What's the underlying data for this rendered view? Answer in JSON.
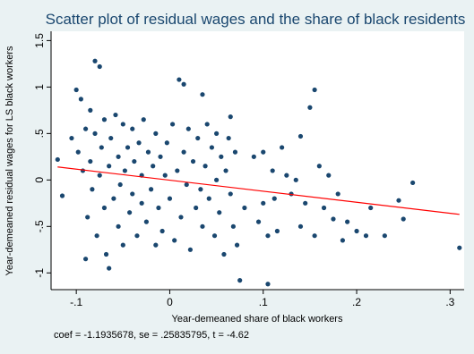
{
  "chart_data": {
    "type": "scatter",
    "title": "Scatter plot of residual wages and the share of black residents",
    "xlabel": "Year-demeaned share of black workers",
    "ylabel": "Year-demeaned residual wages for LS black workers",
    "note": "coef = -1.1935678, se = .25835795, t = -4.62",
    "color": "#1a476f",
    "xlim": [
      -0.127,
      0.315
    ],
    "ylim": [
      -1.18,
      1.6
    ],
    "xticks": [
      {
        "value": -0.1,
        "label": "-.1"
      },
      0,
      {
        "value": 0.1,
        "label": ".1"
      },
      {
        "value": 0.2,
        "label": ".2"
      },
      {
        "value": 0.3,
        "label": ".3"
      }
    ],
    "yticks": [
      -1,
      {
        "value": -0.5,
        "label": "-.5"
      },
      0,
      {
        "value": 0.5,
        "label": ".5"
      },
      1,
      {
        "value": 1.5,
        "label": "1.5"
      }
    ],
    "x": [
      -0.12,
      -0.115,
      -0.105,
      -0.1,
      -0.098,
      -0.095,
      -0.093,
      -0.09,
      -0.09,
      -0.088,
      -0.085,
      -0.085,
      -0.083,
      -0.08,
      -0.08,
      -0.078,
      -0.075,
      -0.075,
      -0.073,
      -0.07,
      -0.07,
      -0.068,
      -0.065,
      -0.065,
      -0.063,
      -0.06,
      -0.058,
      -0.055,
      -0.055,
      -0.053,
      -0.05,
      -0.05,
      -0.048,
      -0.045,
      -0.043,
      -0.04,
      -0.04,
      -0.038,
      -0.035,
      -0.033,
      -0.03,
      -0.03,
      -0.028,
      -0.025,
      -0.023,
      -0.02,
      -0.018,
      -0.015,
      -0.015,
      -0.012,
      -0.01,
      -0.008,
      -0.005,
      -0.003,
      0.0,
      0.003,
      0.005,
      0.008,
      0.01,
      0.012,
      0.015,
      0.015,
      0.018,
      0.02,
      0.022,
      0.025,
      0.028,
      0.03,
      0.033,
      0.035,
      0.035,
      0.038,
      0.04,
      0.042,
      0.045,
      0.048,
      0.05,
      0.05,
      0.053,
      0.055,
      0.058,
      0.06,
      0.063,
      0.065,
      0.065,
      0.068,
      0.07,
      0.072,
      0.075,
      0.08,
      0.09,
      0.095,
      0.1,
      0.1,
      0.105,
      0.105,
      0.11,
      0.112,
      0.115,
      0.12,
      0.125,
      0.13,
      0.135,
      0.14,
      0.14,
      0.145,
      0.15,
      0.155,
      0.155,
      0.16,
      0.165,
      0.17,
      0.175,
      0.18,
      0.185,
      0.19,
      0.2,
      0.21,
      0.215,
      0.23,
      0.245,
      0.25,
      0.26,
      0.31
    ],
    "values": [
      0.22,
      -0.17,
      0.45,
      0.97,
      0.3,
      0.87,
      0.1,
      -0.85,
      0.55,
      -0.4,
      0.75,
      0.2,
      -0.1,
      1.28,
      0.5,
      -0.6,
      1.22,
      0.05,
      0.35,
      -0.3,
      0.65,
      -0.8,
      -0.95,
      0.15,
      0.45,
      -0.2,
      0.7,
      -0.5,
      0.25,
      -0.05,
      0.6,
      -0.7,
      0.1,
      0.35,
      -0.35,
      0.55,
      -0.15,
      0.2,
      -0.6,
      0.4,
      0.05,
      -0.25,
      0.65,
      -0.45,
      0.3,
      -0.1,
      0.15,
      -0.7,
      0.5,
      -0.3,
      0.25,
      -0.55,
      0.05,
      0.4,
      -0.2,
      0.6,
      -0.65,
      0.1,
      1.08,
      -0.4,
      1.03,
      0.3,
      -0.05,
      0.55,
      -0.75,
      0.2,
      -0.3,
      0.45,
      -0.1,
      0.92,
      -0.5,
      0.15,
      0.6,
      -0.2,
      0.35,
      -0.6,
      0.0,
      0.5,
      -0.35,
      0.25,
      -0.8,
      0.1,
      0.45,
      0.68,
      -0.15,
      -0.5,
      0.3,
      -0.7,
      -1.08,
      -0.3,
      0.25,
      -0.45,
      -0.25,
      0.3,
      -1.12,
      -0.6,
      0.1,
      -0.2,
      -0.55,
      0.35,
      0.05,
      -0.15,
      0.0,
      0.47,
      -0.5,
      -0.25,
      0.78,
      0.97,
      -0.6,
      0.15,
      -0.3,
      0.05,
      -0.42,
      -0.15,
      -0.65,
      -0.45,
      -0.55,
      -0.6,
      -0.3,
      -0.6,
      -0.22,
      -0.42,
      -0.03,
      -0.73
    ],
    "fit_line": {
      "x": [
        -0.12,
        0.31
      ],
      "values": [
        0.14,
        -0.37
      ],
      "color": "#ff0000"
    }
  }
}
